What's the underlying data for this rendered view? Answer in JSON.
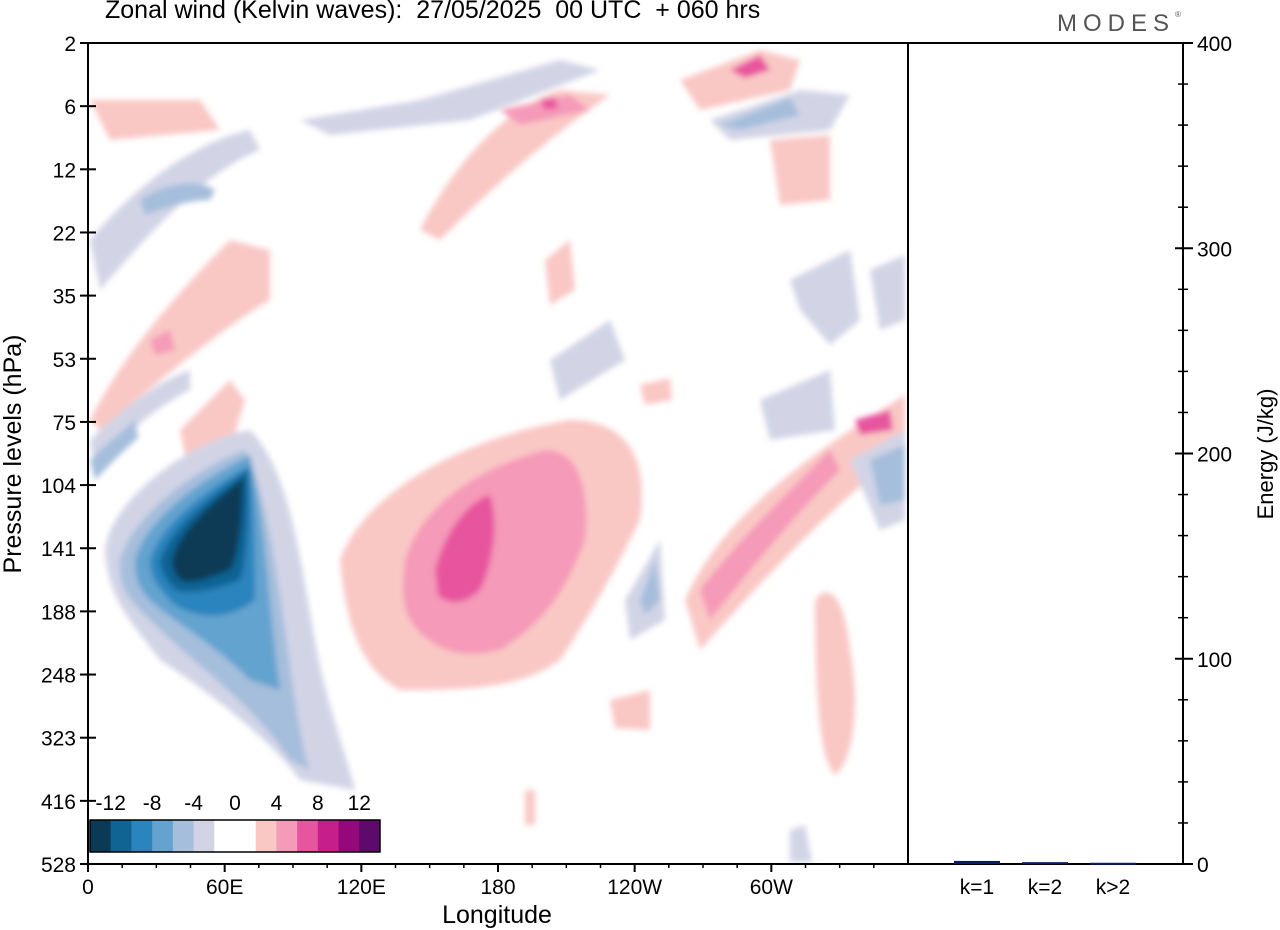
{
  "title": "Zonal wind (Kelvin waves):  27/05/2025  00 UTC  + 060 hrs",
  "brand": "MODES",
  "chart_data": [
    {
      "type": "heatmap",
      "xlabel": "Longitude",
      "ylabel": "Pressure levels (hPa)",
      "x_tick_labels": [
        "0",
        "60E",
        "120E",
        "180",
        "120W",
        "60W"
      ],
      "y_tick_labels": [
        "2",
        "6",
        "12",
        "22",
        "35",
        "53",
        "75",
        "104",
        "141",
        "188",
        "248",
        "323",
        "416",
        "528"
      ],
      "colorbar": {
        "labels": [
          "-12",
          "-8",
          "-4",
          "0",
          "4",
          "8",
          "12"
        ],
        "colors": [
          "#0b3a57",
          "#0f6494",
          "#2a84bd",
          "#64a3cf",
          "#a5bedc",
          "#d2d4e6",
          "#ffffff",
          "#ffffff",
          "#f9c8c5",
          "#f59ab8",
          "#e8559f",
          "#c61e8a",
          "#94087c",
          "#5d0a6c"
        ]
      },
      "features": [
        {
          "region": "60E-90E, 104-248 hPa",
          "value": "<= -12"
        },
        {
          "region": "160E-190E, 104-248 hPa",
          "value": ">= 8"
        },
        {
          "region": "70W-100W, 75-188 hPa",
          "value": ">= 4"
        }
      ]
    },
    {
      "type": "bar",
      "ylabel": "Energy (J/kg)",
      "ylim": [
        0,
        400
      ],
      "y_tick_labels": [
        "0",
        "100",
        "200",
        "300",
        "400"
      ],
      "categories": [
        "k=1",
        "k=2",
        "k>2"
      ],
      "values": [
        1.5,
        0.9,
        0.6
      ],
      "color": "#0a1a6e"
    }
  ]
}
